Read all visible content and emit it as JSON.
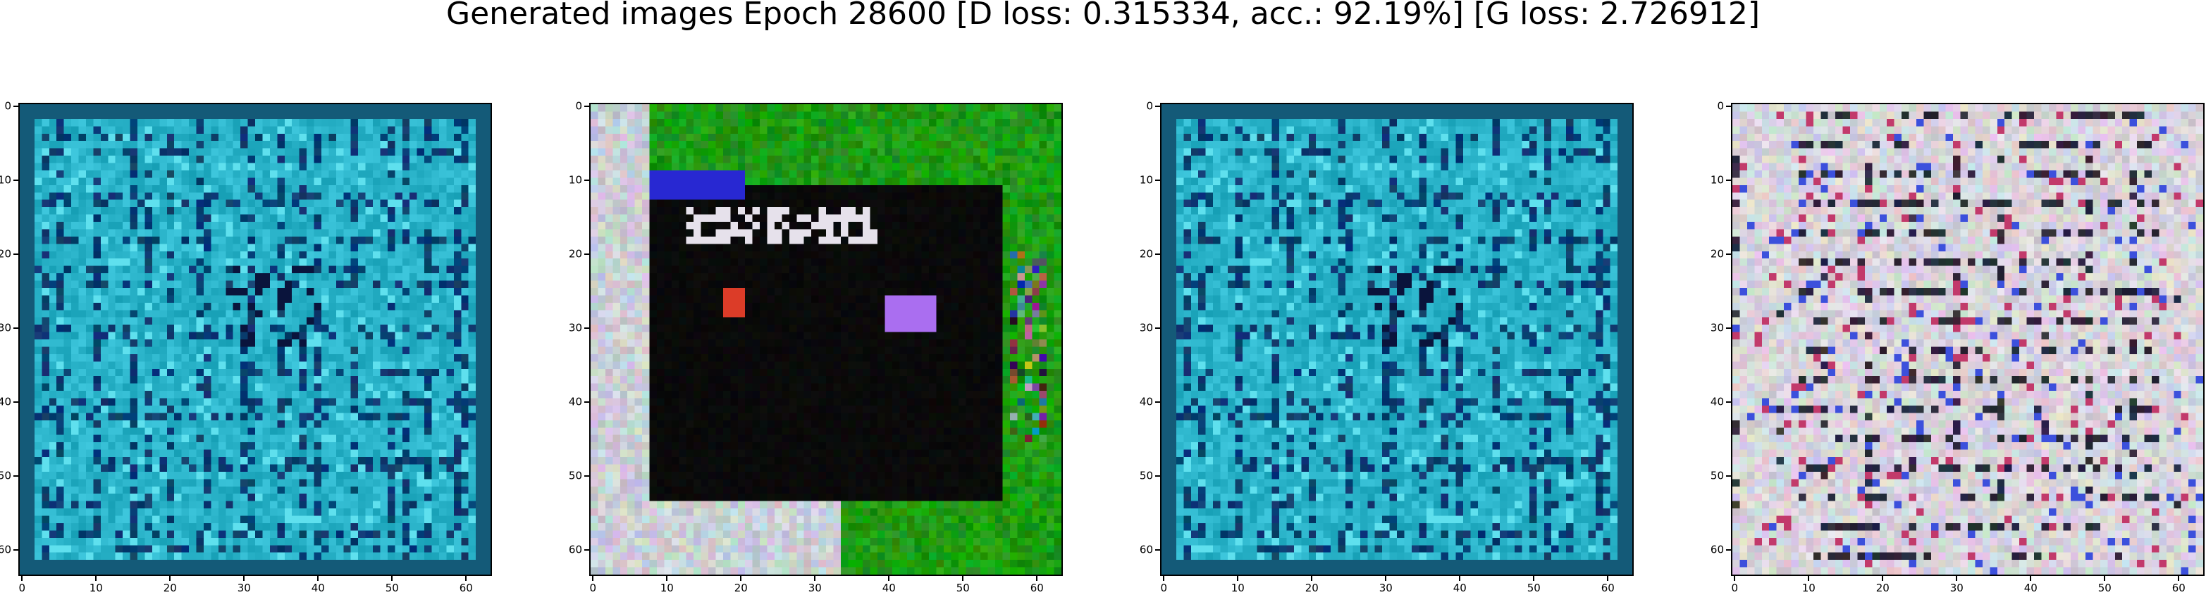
{
  "figure": {
    "title": "Generated images Epoch 28600 [D loss: 0.315334, acc.: 92.19%] [G loss: 2.726912]"
  },
  "panels": [
    {
      "id": "sample-1",
      "description": "generated sample",
      "palette": {
        "base": "#2ab3c9",
        "dark": "#0b3a6e",
        "light": "#5fe0ee"
      }
    },
    {
      "id": "sample-2",
      "description": "generated sample",
      "palette": {
        "green": "#1e9b14",
        "black": "#050505",
        "light": "#c9ced6"
      }
    },
    {
      "id": "sample-3",
      "description": "generated sample",
      "palette": {
        "base": "#2ab3c9",
        "dark": "#0b3a6e",
        "light": "#5fe0ee"
      }
    },
    {
      "id": "sample-4",
      "description": "generated sample",
      "palette": {
        "base": "#d8d4dc",
        "dark": "#1b1a2a",
        "accent": "#c23a6b"
      }
    }
  ],
  "axes": {
    "x_tick_labels": [
      "0",
      "10",
      "20",
      "30",
      "40",
      "50",
      "60"
    ],
    "y_tick_labels": [
      "0",
      "10",
      "20",
      "30",
      "40",
      "50",
      "60"
    ],
    "xlim": [
      -0.5,
      63.5
    ],
    "ylim": [
      63.5,
      -0.5
    ]
  }
}
